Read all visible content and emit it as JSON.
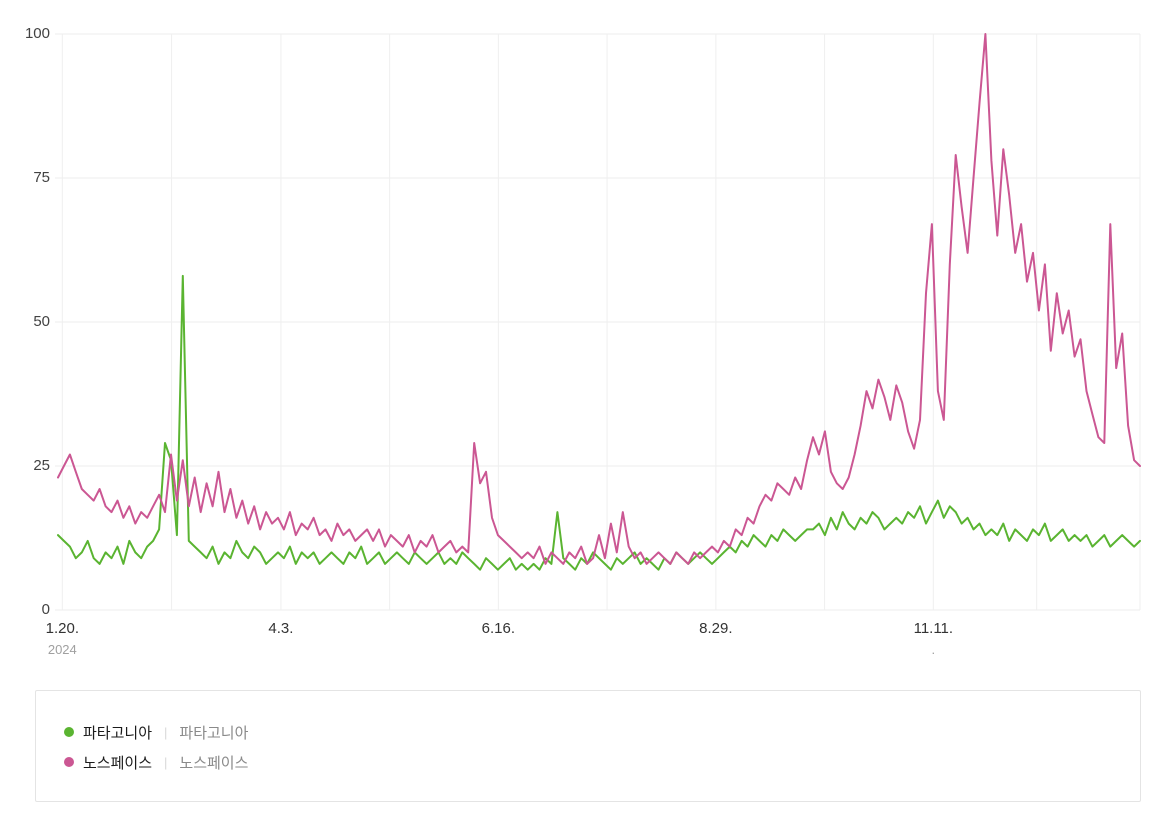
{
  "chart_data": {
    "type": "line",
    "title": "",
    "xlabel": "",
    "ylabel": "",
    "ylim": [
      0,
      100
    ],
    "grid": true,
    "legend_position": "bottom",
    "y_ticks": [
      0,
      25,
      50,
      75,
      100
    ],
    "y_tick_labels": [
      "0",
      "25",
      "50",
      "75",
      "100"
    ],
    "x_ticks": [
      {
        "label": "1.20.",
        "sub_label": "2024",
        "pos": 0.004
      },
      {
        "label": "4.3.",
        "sub_label": "",
        "pos": 0.206
      },
      {
        "label": "6.16.",
        "sub_label": "",
        "pos": 0.407
      },
      {
        "label": "8.29.",
        "sub_label": "",
        "pos": 0.608
      },
      {
        "label": "11.11.",
        "sub_label": ".",
        "pos": 0.809
      }
    ],
    "series": [
      {
        "name": "파타고니아",
        "color": "#5ab431",
        "values": [
          13,
          12,
          11,
          9,
          10,
          12,
          9,
          8,
          10,
          9,
          11,
          8,
          12,
          10,
          9,
          11,
          12,
          14,
          29,
          26,
          13,
          58,
          12,
          11,
          10,
          9,
          11,
          8,
          10,
          9,
          12,
          10,
          9,
          11,
          10,
          8,
          9,
          10,
          9,
          11,
          8,
          10,
          9,
          10,
          8,
          9,
          10,
          9,
          8,
          10,
          9,
          11,
          8,
          9,
          10,
          8,
          9,
          10,
          9,
          8,
          10,
          9,
          8,
          9,
          10,
          8,
          9,
          8,
          10,
          9,
          8,
          7,
          9,
          8,
          7,
          8,
          9,
          7,
          8,
          7,
          8,
          7,
          9,
          8,
          17,
          9,
          8,
          7,
          9,
          8,
          10,
          9,
          8,
          7,
          9,
          8,
          9,
          10,
          8,
          9,
          8,
          7,
          9,
          8,
          10,
          9,
          8,
          9,
          10,
          9,
          8,
          9,
          10,
          11,
          10,
          12,
          11,
          13,
          12,
          11,
          13,
          12,
          14,
          13,
          12,
          13,
          14,
          14,
          15,
          13,
          16,
          14,
          17,
          15,
          14,
          16,
          15,
          17,
          16,
          14,
          15,
          16,
          15,
          17,
          16,
          18,
          15,
          17,
          19,
          16,
          18,
          17,
          15,
          16,
          14,
          15,
          13,
          14,
          13,
          15,
          12,
          14,
          13,
          12,
          14,
          13,
          15,
          12,
          13,
          14,
          12,
          13,
          12,
          13,
          11,
          12,
          13,
          11,
          12,
          13,
          12,
          11,
          12
        ]
      },
      {
        "name": "노스페이스",
        "color": "#cb5793",
        "values": [
          23,
          25,
          27,
          24,
          21,
          20,
          19,
          21,
          18,
          17,
          19,
          16,
          18,
          15,
          17,
          16,
          18,
          20,
          17,
          27,
          19,
          26,
          18,
          23,
          17,
          22,
          18,
          24,
          17,
          21,
          16,
          19,
          15,
          18,
          14,
          17,
          15,
          16,
          14,
          17,
          13,
          15,
          14,
          16,
          13,
          14,
          12,
          15,
          13,
          14,
          12,
          13,
          14,
          12,
          14,
          11,
          13,
          12,
          11,
          13,
          10,
          12,
          11,
          13,
          10,
          11,
          12,
          10,
          11,
          10,
          29,
          22,
          24,
          16,
          13,
          12,
          11,
          10,
          9,
          10,
          9,
          11,
          8,
          10,
          9,
          8,
          10,
          9,
          11,
          8,
          9,
          13,
          9,
          15,
          10,
          17,
          11,
          9,
          10,
          8,
          9,
          10,
          9,
          8,
          10,
          9,
          8,
          10,
          9,
          10,
          11,
          10,
          12,
          11,
          14,
          13,
          16,
          15,
          18,
          20,
          19,
          22,
          21,
          20,
          23,
          21,
          26,
          30,
          27,
          31,
          24,
          22,
          21,
          23,
          27,
          32,
          38,
          35,
          40,
          37,
          33,
          39,
          36,
          31,
          28,
          33,
          55,
          67,
          38,
          33,
          60,
          79,
          70,
          62,
          75,
          88,
          100,
          78,
          65,
          80,
          72,
          62,
          67,
          57,
          62,
          52,
          60,
          45,
          55,
          48,
          52,
          44,
          47,
          38,
          34,
          30,
          29,
          67,
          42,
          48,
          32,
          26,
          25
        ]
      }
    ]
  },
  "legend": {
    "separator": "|",
    "items": [
      {
        "label": "파타고니아",
        "sub_label": "파타고니아",
        "color": "#5ab431"
      },
      {
        "label": "노스페이스",
        "sub_label": "노스페이스",
        "color": "#cb5793"
      }
    ]
  }
}
